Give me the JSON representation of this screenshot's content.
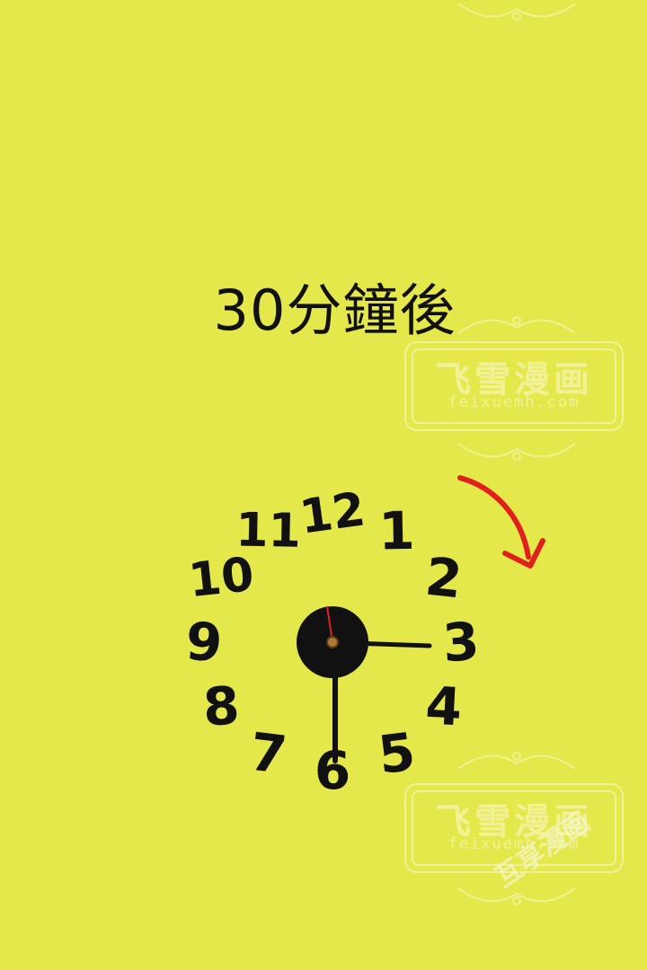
{
  "panel": {
    "background": "#e5e84a",
    "caption": "30分鐘後"
  },
  "clock": {
    "numerals": [
      "12",
      "1",
      "2",
      "3",
      "4",
      "5",
      "6",
      "7",
      "8",
      "9",
      "10",
      "11"
    ],
    "hour_hand_points_to": "3",
    "minute_hand_points_to": "6",
    "face_color": "#111111",
    "second_hand_color": "#d8232a"
  },
  "annotation": {
    "arrow_color": "#e0201c",
    "direction": "clockwise"
  },
  "watermarks": {
    "brand": "飞雪漫画",
    "url": "feixuemh.com",
    "corner_text": "互享漫画"
  }
}
